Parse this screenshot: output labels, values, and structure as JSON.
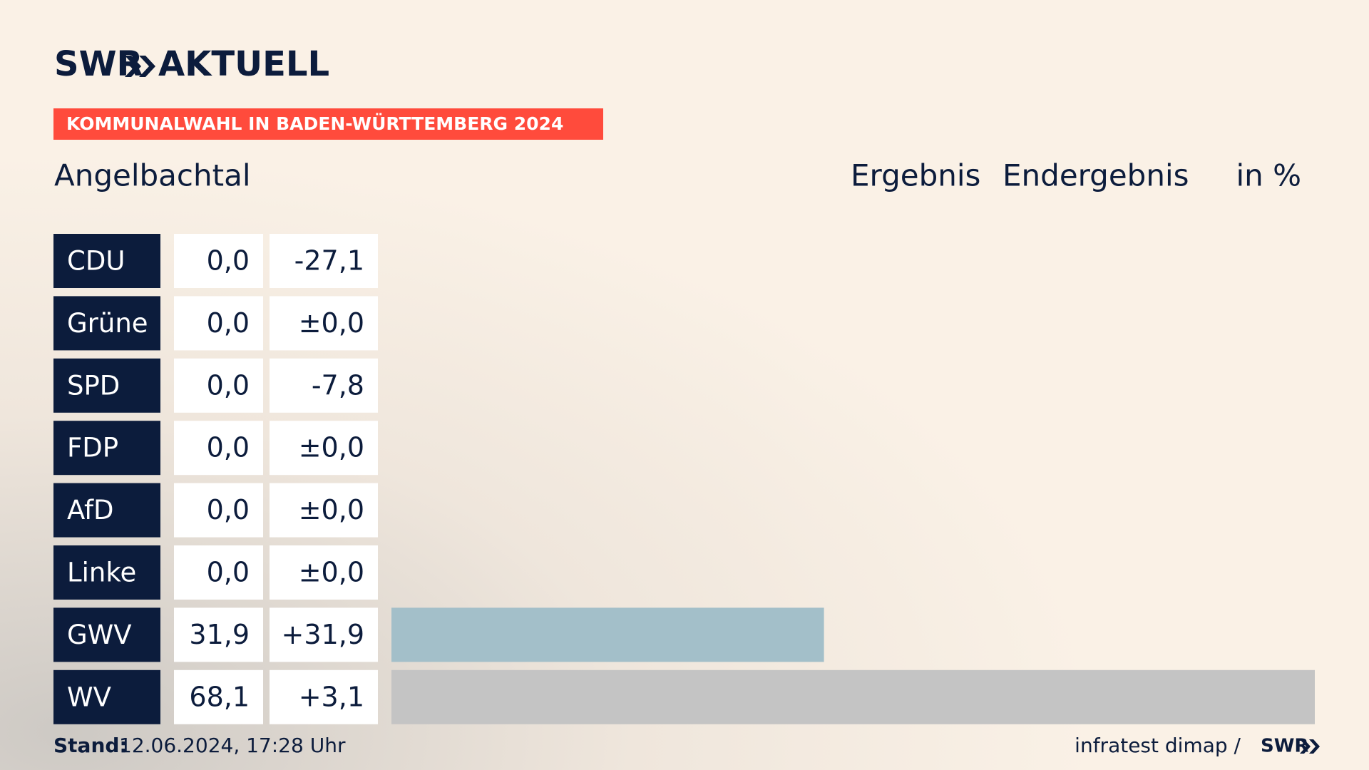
{
  "chart_data": {
    "type": "bar",
    "logo": "SWR",
    "logo_suffix": "AKTUELL",
    "title": "KOMMUNALWAHL IN BADEN-WÜRTTEMBERG 2024",
    "subtitle": "Angelbachtal",
    "column_headers": [
      "Ergebnis",
      "Endergebnis",
      "in %"
    ],
    "categories": [
      "CDU",
      "Grüne",
      "SPD",
      "FDP",
      "AfD",
      "Linke",
      "GWV",
      "WV"
    ],
    "values": [
      0.0,
      0.0,
      0.0,
      0.0,
      0.0,
      0.0,
      31.9,
      68.1
    ],
    "value_labels": [
      "0,0",
      "0,0",
      "0,0",
      "0,0",
      "0,0",
      "0,0",
      "31,9",
      "68,1"
    ],
    "changes": [
      -27.1,
      0.0,
      -7.8,
      0.0,
      0.0,
      0.0,
      31.9,
      3.1
    ],
    "change_labels": [
      "-27,1",
      "±0,0",
      "-7,8",
      "±0,0",
      "±0,0",
      "±0,0",
      "+31,9",
      "+3,1"
    ],
    "colors": [
      "#1a1a1a",
      "#4f9b3a",
      "#d7262f",
      "#f4d21a",
      "#1f9bd6",
      "#b3206d",
      "#a3bfc9",
      "#c4c4c4"
    ],
    "xlim": [
      0,
      68.1
    ],
    "footer_label": "Stand:",
    "footer_date": "12.06.2024, 17:28 Uhr",
    "source": "infratest dimap /",
    "source_logo": "SWR"
  }
}
